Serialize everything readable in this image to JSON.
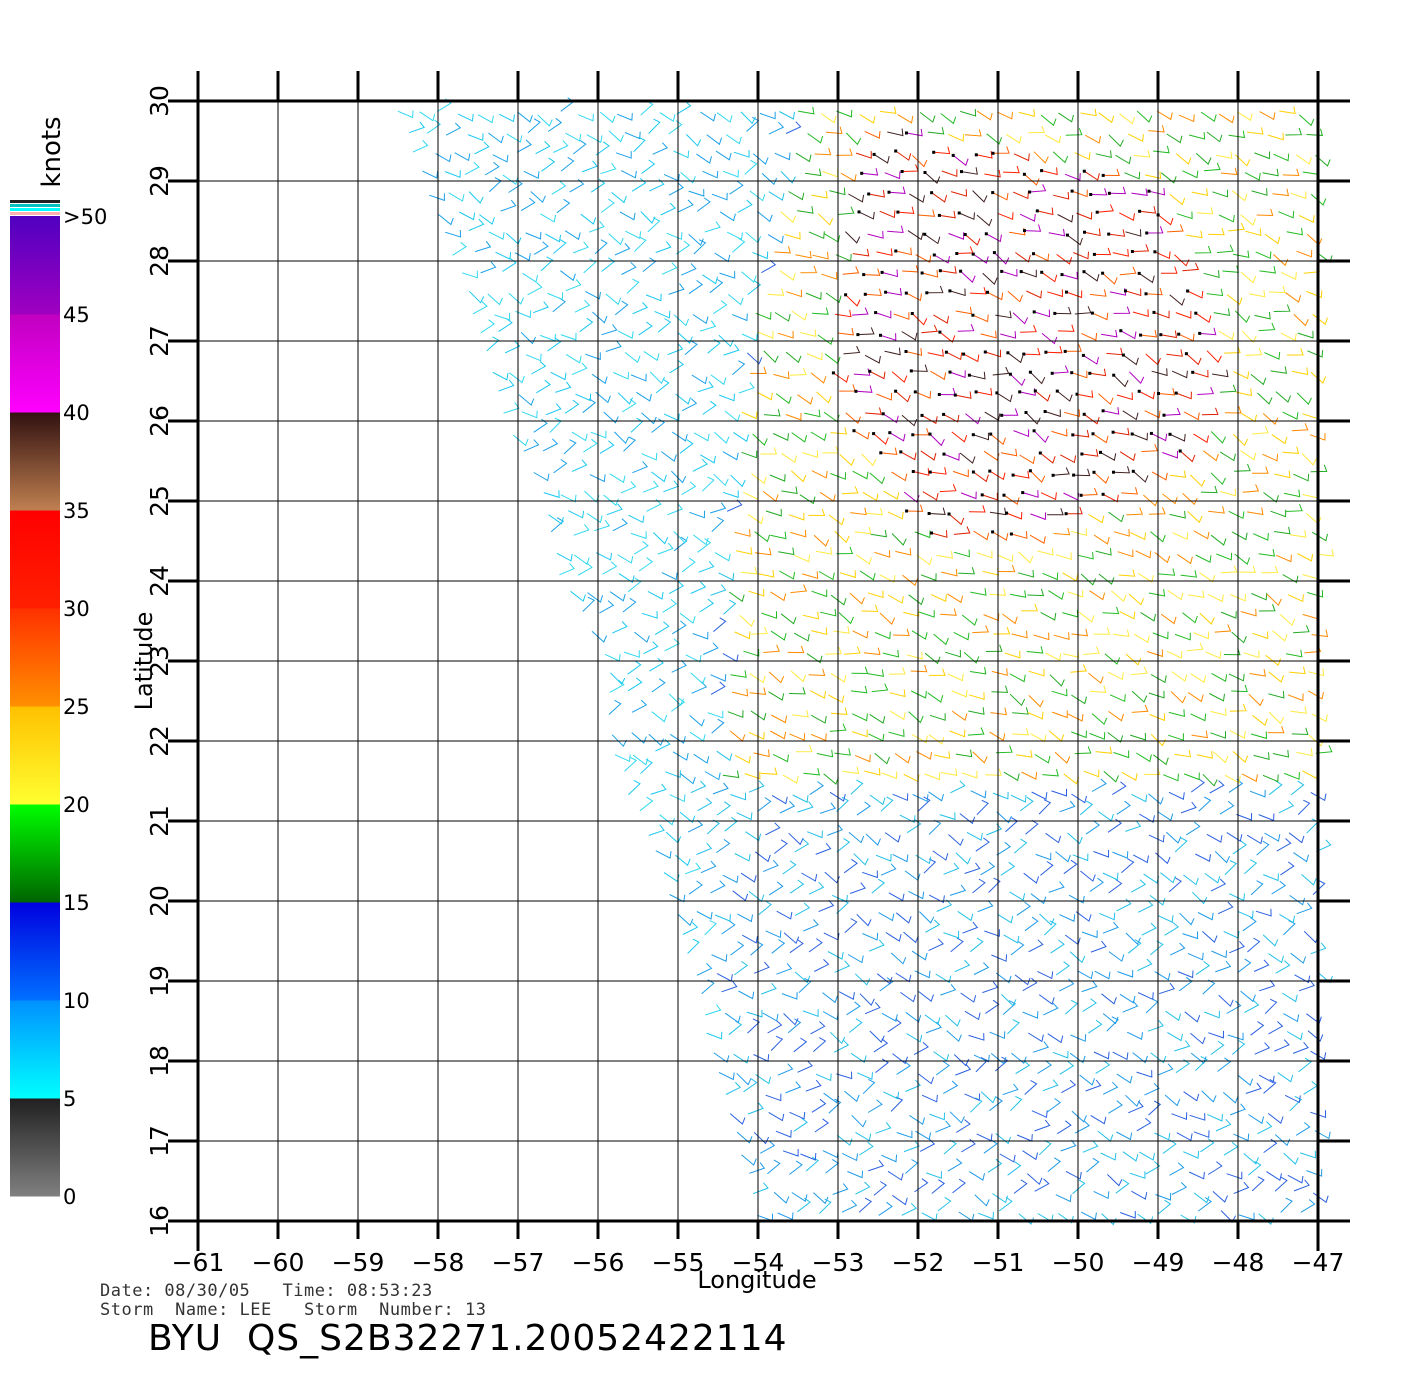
{
  "chart_data": {
    "type": "wind-barb-map",
    "xlabel": "Longitude",
    "ylabel": "Latitude",
    "xlim": [
      -61,
      -47
    ],
    "ylim": [
      16,
      30
    ],
    "x_ticks": [
      -61,
      -60,
      -59,
      -58,
      -57,
      -56,
      -55,
      -54,
      -53,
      -52,
      -51,
      -50,
      -49,
      -48,
      -47
    ],
    "y_ticks": [
      16,
      17,
      18,
      19,
      20,
      21,
      22,
      23,
      24,
      25,
      26,
      27,
      28,
      29,
      30
    ],
    "x_tick_labels": [
      "−61",
      "−60",
      "−59",
      "−58",
      "−57",
      "−56",
      "−55",
      "−54",
      "−53",
      "−52",
      "−51",
      "−50",
      "−49",
      "−48",
      "−47"
    ],
    "y_tick_labels": [
      "16",
      "17",
      "18",
      "19",
      "20",
      "21",
      "22",
      "23",
      "24",
      "25",
      "26",
      "27",
      "28",
      "29",
      "30"
    ],
    "grid": true,
    "swath_left_edge": [
      [
        -58.6,
        30
      ],
      [
        -57.8,
        28
      ],
      [
        -57.2,
        26
      ],
      [
        -56.7,
        25
      ],
      [
        -56.5,
        24
      ],
      [
        -55.9,
        23
      ],
      [
        -55.9,
        22
      ],
      [
        -55.5,
        21
      ],
      [
        -55.1,
        20
      ],
      [
        -54.8,
        19
      ],
      [
        -54.6,
        18
      ],
      [
        -54.3,
        17
      ],
      [
        -54.0,
        16
      ]
    ],
    "swath_right_edge": -47,
    "colorbar": {
      "title": "knots",
      "levels": [
        0,
        5,
        10,
        15,
        20,
        25,
        30,
        35,
        40,
        45,
        ">50"
      ],
      "level_labels": [
        "0",
        "5",
        "10",
        "15",
        "20",
        "25",
        "30",
        "35",
        "40",
        "45",
        ">50"
      ],
      "stops": [
        {
          "from": 0,
          "to": 5,
          "colors": [
            "#808080",
            "#202020"
          ]
        },
        {
          "from": 5,
          "to": 10,
          "colors": [
            "#00ffff",
            "#0090ff"
          ]
        },
        {
          "from": 10,
          "to": 15,
          "colors": [
            "#0070ff",
            "#0000e0"
          ]
        },
        {
          "from": 15,
          "to": 20,
          "colors": [
            "#006400",
            "#00ff00"
          ]
        },
        {
          "from": 20,
          "to": 25,
          "colors": [
            "#ffff30",
            "#ffc000"
          ]
        },
        {
          "from": 25,
          "to": 30,
          "colors": [
            "#ff9000",
            "#ff3000"
          ]
        },
        {
          "from": 30,
          "to": 35,
          "colors": [
            "#ff2000",
            "#ff0000"
          ]
        },
        {
          "from": 35,
          "to": 40,
          "colors": [
            "#c08050",
            "#301010"
          ]
        },
        {
          "from": 40,
          "to": 45,
          "colors": [
            "#ff00ff",
            "#c000c0"
          ]
        },
        {
          "from": 45,
          "to": 50,
          "colors": [
            "#a000c0",
            "#5000c0"
          ]
        }
      ],
      "top_flags": [
        "#202020",
        "#00c0c0",
        "#00ffff",
        "#ffb0b0"
      ]
    },
    "speed_regions": [
      {
        "name": "calm",
        "poly": [
          [
            -56.6,
            25
          ],
          [
            -55.4,
            25
          ],
          [
            -55.2,
            23
          ],
          [
            -55.6,
            21.3
          ],
          [
            -55.0,
            20.5
          ],
          [
            -55.5,
            20.5
          ],
          [
            -56.0,
            22.5
          ],
          [
            -56.6,
            24
          ]
        ],
        "colors": [
          "#333333",
          "#555555"
        ]
      },
      {
        "name": "light",
        "poly": [
          [
            -58.6,
            30
          ],
          [
            -53.8,
            30
          ],
          [
            -54.3,
            25.5
          ],
          [
            -54.6,
            24
          ],
          [
            -55.2,
            22
          ],
          [
            -54.6,
            20.6
          ],
          [
            -55.5,
            20.5
          ],
          [
            -56.6,
            24
          ],
          [
            -57.6,
            27
          ]
        ],
        "colors": [
          "#19c8f0",
          "#1aa0e8",
          "#30d8f0"
        ]
      },
      {
        "name": "moderate",
        "poly": [
          [
            -55.0,
            21.5
          ],
          [
            -47,
            21.5
          ],
          [
            -47,
            16
          ],
          [
            -54.0,
            16
          ]
        ],
        "colors": [
          "#2a60e0",
          "#1e9ae8",
          "#22c0e8"
        ]
      },
      {
        "name": "east-fresh",
        "poly": [
          [
            -53.5,
            30
          ],
          [
            -47,
            30
          ],
          [
            -47,
            21.5
          ],
          [
            -54.5,
            21.5
          ],
          [
            -54.3,
            26
          ]
        ],
        "colors": [
          "#22aa22",
          "#ffd000",
          "#ffea40",
          "#ff8a00",
          "#22bb22"
        ]
      },
      {
        "name": "core-strong",
        "poly": [
          [
            -52.8,
            29.8
          ],
          [
            -49.0,
            29.0
          ],
          [
            -48.2,
            27.0
          ],
          [
            -48.6,
            25.5
          ],
          [
            -50.5,
            24.5
          ],
          [
            -52.0,
            24.6
          ],
          [
            -53.2,
            26.5
          ]
        ],
        "colors": [
          "#ff2000",
          "#e02000",
          "#402020",
          "#b000c0",
          "#ff6000"
        ]
      }
    ]
  },
  "footer": {
    "date_line": "Date: 08/30/05   Time: 08:53:23",
    "storm_line": "Storm  Name: LEE   Storm  Number: 13",
    "product": "BYU  QS_S2B32271.20052422114"
  }
}
